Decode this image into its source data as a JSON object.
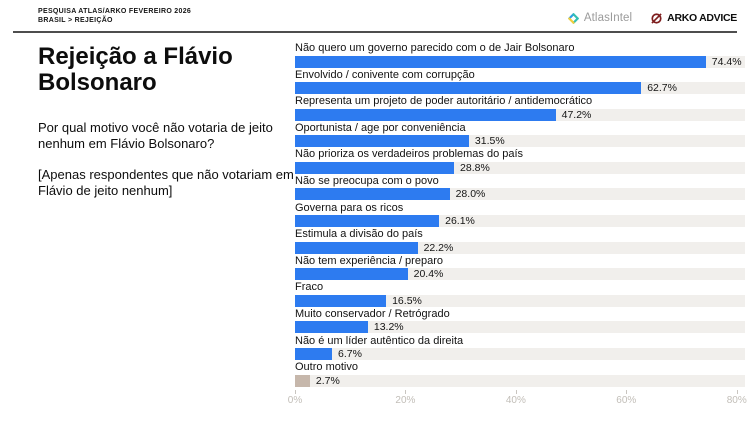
{
  "header": {
    "line1": "PESQUISA ATLAS/ARKO FEVEREIRO 2026",
    "line2": "BRASIL > REJEIÇÃO"
  },
  "logos": {
    "atlas_intel_label": "AtlasIntel",
    "arko_label": "ARKO ADVICE"
  },
  "panel": {
    "title": "Rejeição a Flávio Bolsonaro",
    "question": "Por qual motivo você não votaria de jeito nenhum em Flávio Bolsonaro?",
    "note": "[Apenas respondentes que não votariam em Flávio de jeito nenhum]"
  },
  "chart_data": {
    "type": "bar",
    "orientation": "horizontal",
    "title": "Por qual motivo você não votaria de jeito nenhum em Flávio Bolsonaro?",
    "categories": [
      "Não quero um governo parecido com o de Jair Bolsonaro",
      "Envolvido / conivente com corrupção",
      "Representa um projeto de poder autoritário / antidemocrático",
      "Oportunista / age por conveniência",
      "Não prioriza os verdadeiros problemas do país",
      "Não se preocupa com o povo",
      "Governa para os ricos",
      "Estimula a divisão do país",
      "Não tem experiência / preparo",
      "Fraco",
      "Muito conservador / Retrógrado",
      "Não é um líder autêntico da direita",
      "Outro motivo"
    ],
    "values": [
      74.4,
      62.7,
      47.2,
      31.5,
      28.8,
      28.0,
      26.1,
      22.2,
      20.4,
      16.5,
      13.2,
      6.7,
      2.7
    ],
    "value_labels": [
      "74.4%",
      "62.7%",
      "47.2%",
      "31.5%",
      "28.8%",
      "28.0%",
      "26.1%",
      "22.2%",
      "20.4%",
      "16.5%",
      "13.2%",
      "6.7%",
      "2.7%"
    ],
    "bar_colors": [
      "#2d7bf0",
      "#2d7bf0",
      "#2d7bf0",
      "#2d7bf0",
      "#2d7bf0",
      "#2d7bf0",
      "#2d7bf0",
      "#2d7bf0",
      "#2d7bf0",
      "#2d7bf0",
      "#2d7bf0",
      "#2d7bf0",
      "#c6b7ab"
    ],
    "track_color": "#f1efec",
    "axis": {
      "tick_labels": [
        "0%",
        "20%",
        "40%",
        "60%",
        "80%"
      ],
      "tick_values": [
        0,
        20,
        40,
        60,
        80
      ],
      "xlim": [
        0,
        81.5
      ]
    },
    "legend": null,
    "grid": false
  },
  "colors": {
    "accent_blue": "#2d7bf0",
    "other_beige": "#c6b7ab",
    "arko_red": "#7e1e1e",
    "atlas_blue": "#2e9fe6",
    "atlas_teal": "#35c0b2",
    "atlas_yellow": "#f2ce3c"
  }
}
